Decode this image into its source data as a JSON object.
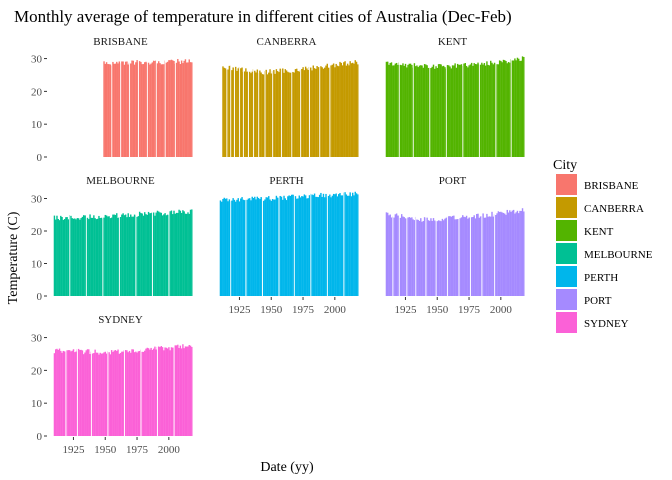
{
  "chart_data": {
    "type": "bar",
    "layout": "faceted",
    "title": "Monthly average of temperature in different cities of Australia (Dec-Feb)",
    "xlabel": "Date (yy)",
    "ylabel": "Temperature (C)",
    "legend": {
      "title": "City",
      "placement": "right"
    },
    "xlim": [
      1905,
      2019
    ],
    "ylim": [
      0,
      32
    ],
    "x_ticks": [
      "1925",
      "1950",
      "1975",
      "2000"
    ],
    "y_ticks": [
      "0",
      "10",
      "20",
      "30"
    ],
    "grid": false,
    "facets": [
      {
        "name": "BRISBANE",
        "color": "#F8766D",
        "x_start": 1949,
        "x_end": 2018,
        "trend": [
          [
            1949,
            28.5
          ],
          [
            1980,
            28.8
          ],
          [
            2018,
            29.2
          ]
        ],
        "gaps": [
          1955,
          1962,
          1969,
          1976,
          1983,
          1990,
          1997,
          2005
        ]
      },
      {
        "name": "CANBERRA",
        "color": "#C49A00",
        "x_start": 1912,
        "x_end": 2018,
        "trend": [
          [
            1912,
            27.5
          ],
          [
            1940,
            25.8
          ],
          [
            1970,
            26.5
          ],
          [
            2018,
            29.0
          ]
        ],
        "gaps": [
          1915,
          1918,
          1921,
          1925,
          1928,
          1932,
          1936,
          1940,
          1945,
          1951,
          1958,
          1966,
          1973,
          1980,
          1988,
          1996
        ]
      },
      {
        "name": "KENT",
        "color": "#53B400",
        "x_start": 1910,
        "x_end": 2018,
        "trend": [
          [
            1910,
            28.5
          ],
          [
            1950,
            27.5
          ],
          [
            1990,
            28.5
          ],
          [
            2018,
            30.0
          ]
        ],
        "gaps": [
          1920,
          1931,
          1944,
          1957,
          1970,
          1983,
          1996,
          2008
        ]
      },
      {
        "name": "MELBOURNE",
        "color": "#00C094",
        "x_start": 1910,
        "x_end": 2018,
        "trend": [
          [
            1910,
            24.0
          ],
          [
            1950,
            24.5
          ],
          [
            1990,
            25.5
          ],
          [
            2018,
            26.0
          ]
        ],
        "gaps": [
          1922,
          1935,
          1948,
          1961,
          1974,
          1987,
          2000
        ]
      },
      {
        "name": "PERTH",
        "color": "#00B6EB",
        "x_start": 1910,
        "x_end": 2018,
        "trend": [
          [
            1910,
            29.5
          ],
          [
            1950,
            30.0
          ],
          [
            1990,
            31.0
          ],
          [
            2018,
            31.5
          ]
        ],
        "gaps": [
          1918,
          1930,
          1943,
          1956,
          1968,
          1981,
          1994,
          2007
        ]
      },
      {
        "name": "PORT",
        "color": "#A58AFF",
        "x_start": 1910,
        "x_end": 2018,
        "trend": [
          [
            1910,
            25.0
          ],
          [
            1940,
            23.5
          ],
          [
            1980,
            24.5
          ],
          [
            2018,
            26.5
          ]
        ],
        "gaps": [
          1915,
          1920,
          1926,
          1933,
          1941,
          1949,
          1958,
          1967,
          1976,
          1985,
          1995
        ]
      },
      {
        "name": "SYDNEY",
        "color": "#FB61D7",
        "x_start": 1910,
        "x_end": 2018,
        "trend": [
          [
            1910,
            26.0
          ],
          [
            1950,
            25.5
          ],
          [
            1990,
            26.5
          ],
          [
            2018,
            27.5
          ]
        ],
        "gaps": [
          1919,
          1928,
          1939,
          1952,
          1965,
          1978,
          1991,
          2004
        ]
      }
    ]
  }
}
